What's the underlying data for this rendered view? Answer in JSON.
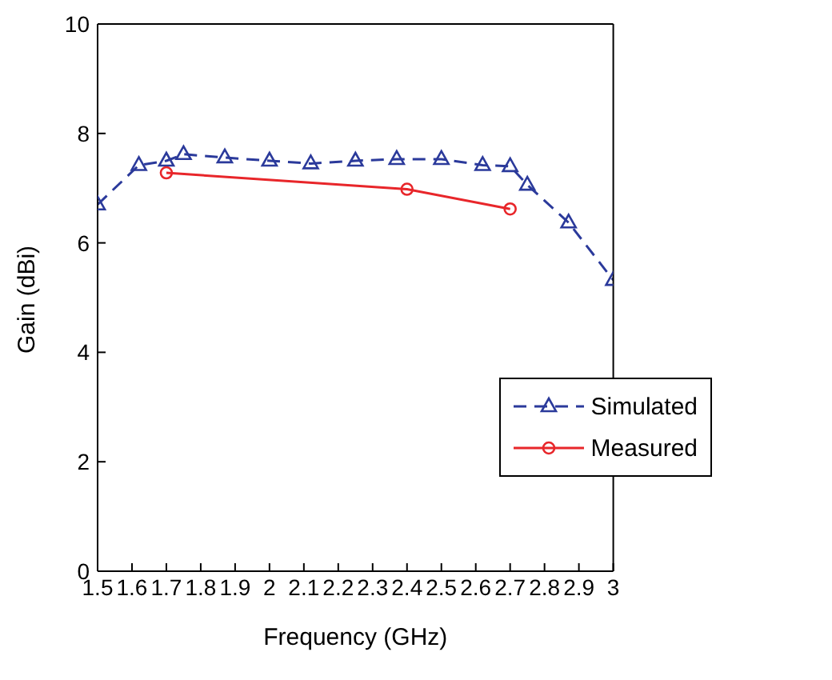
{
  "chart_data": {
    "type": "line",
    "xlabel": "Frequency (GHz)",
    "ylabel": "Gain (dBi)",
    "xlim": [
      1.5,
      3
    ],
    "xticks": [
      1.5,
      1.6,
      1.7,
      1.8,
      1.9,
      2,
      2.1,
      2.2,
      2.3,
      2.4,
      2.5,
      2.6,
      2.7,
      2.8,
      2.9,
      3
    ],
    "ylim": [
      0,
      10
    ],
    "yticks": [
      0,
      2,
      4,
      6,
      8,
      10
    ],
    "grid": false,
    "legend": "right",
    "series": [
      {
        "name": "Simulated",
        "color": "#2b3a9b",
        "marker": "triangle",
        "line_style": "dashed",
        "x": [
          1.5,
          1.62,
          1.7,
          1.75,
          1.87,
          2,
          2.12,
          2.25,
          2.37,
          2.5,
          2.62,
          2.7,
          2.75,
          2.87,
          3
        ],
        "values": [
          6.7,
          7.42,
          7.5,
          7.62,
          7.56,
          7.5,
          7.45,
          7.5,
          7.53,
          7.53,
          7.42,
          7.4,
          7.06,
          6.37,
          5.32
        ]
      },
      {
        "name": "Measured",
        "color": "#e8262a",
        "marker": "circle",
        "line_style": "solid",
        "x": [
          1.7,
          2.4,
          2.7
        ],
        "values": [
          7.28,
          6.98,
          6.62
        ]
      }
    ]
  }
}
